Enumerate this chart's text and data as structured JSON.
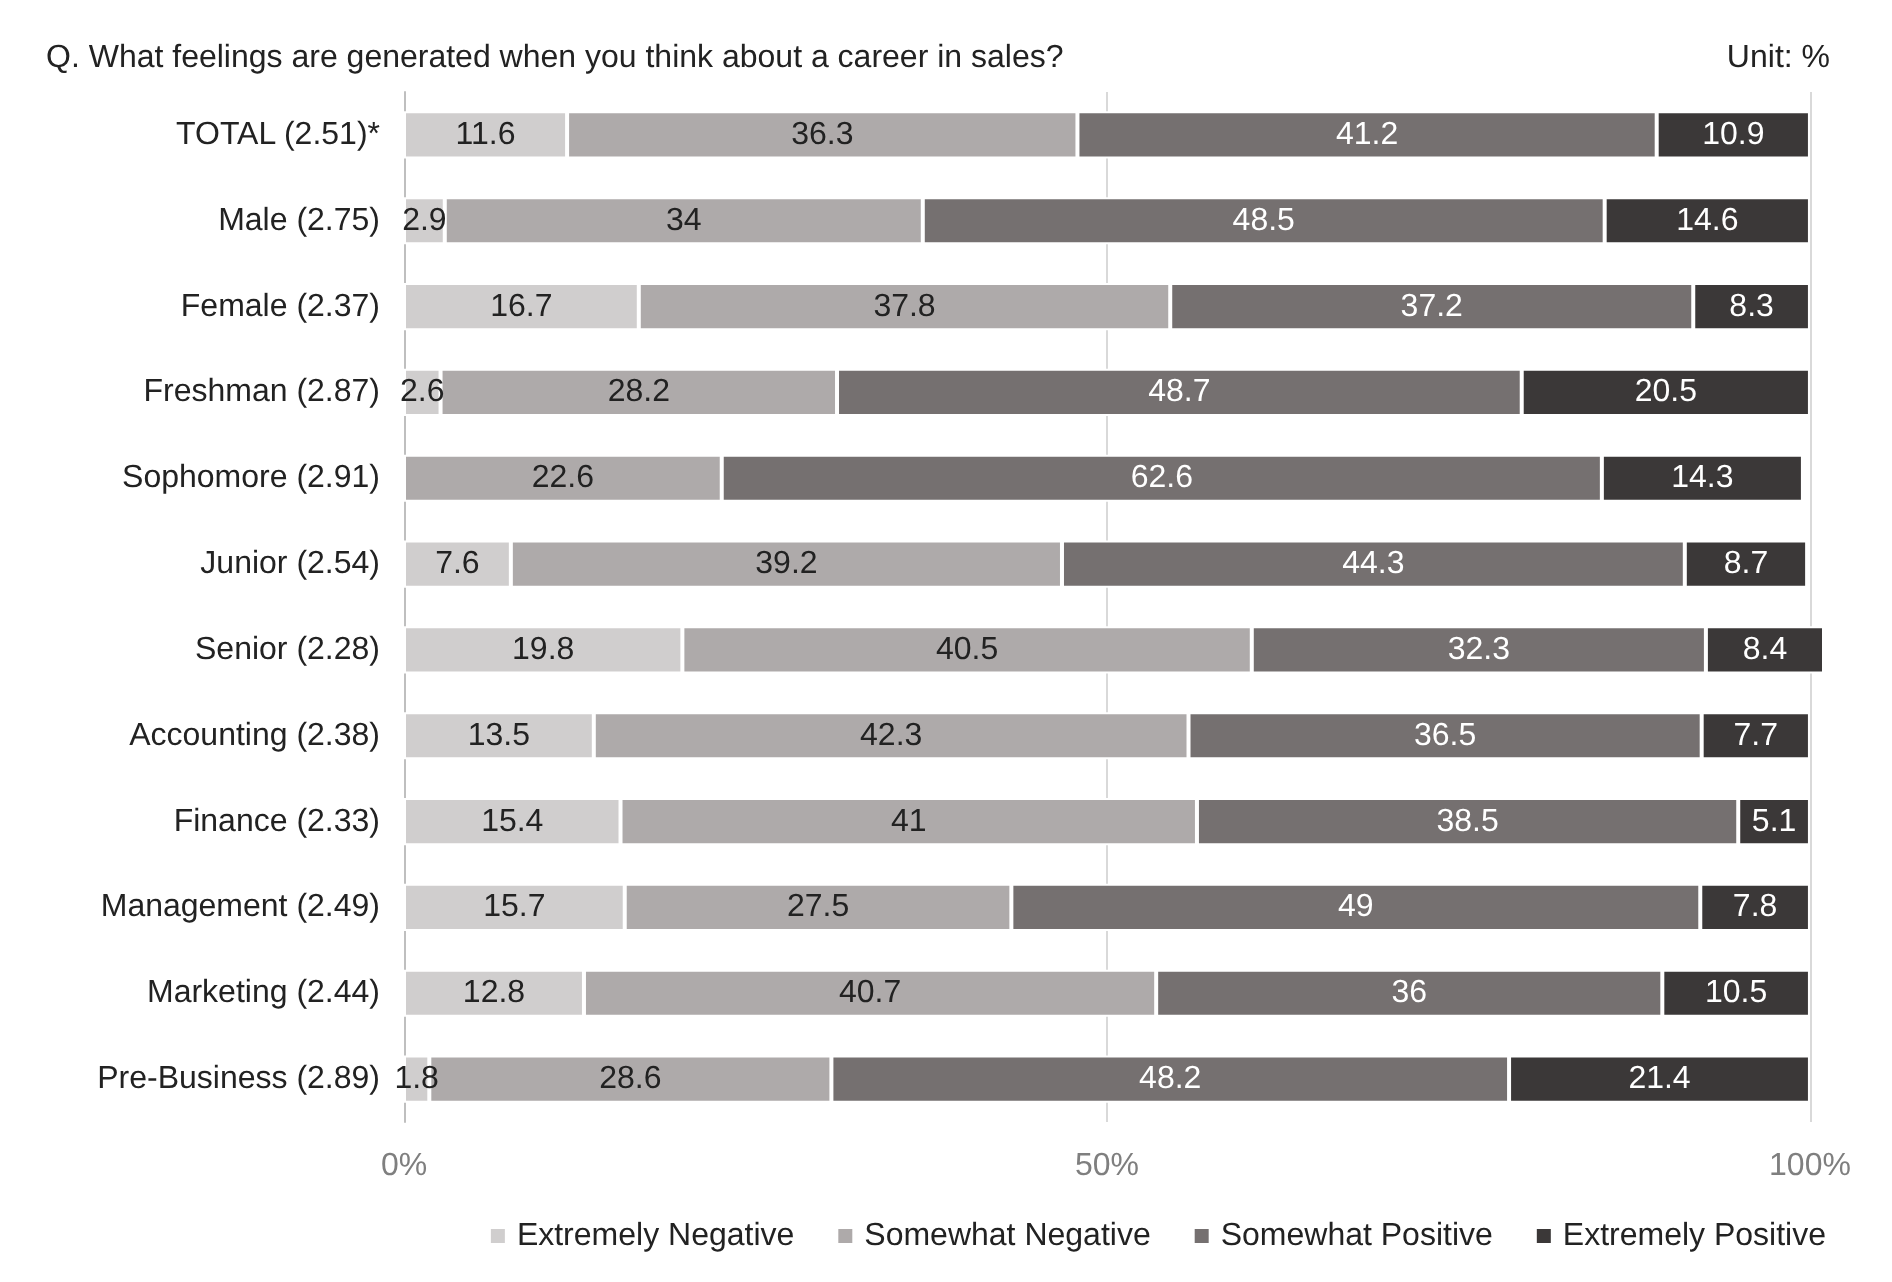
{
  "chart_data": {
    "type": "bar",
    "orientation": "horizontal",
    "stacked": true,
    "title": "Q. What feelings are generated when you think about a career in sales?",
    "annotations": [
      "Unit: %"
    ],
    "categories": [
      "TOTAL (2.51)*",
      "Male (2.75)",
      "Female (2.37)",
      "Freshman (2.87)",
      "Sophomore (2.91)",
      "Junior (2.54)",
      "Senior (2.28)",
      "Accounting (2.38)",
      "Finance (2.33)",
      "Management (2.49)",
      "Marketing (2.44)",
      "Pre-Business (2.89)"
    ],
    "series": [
      {
        "name": "Extremely Negative",
        "color": "#d0cece",
        "values": [
          11.6,
          2.9,
          16.7,
          2.6,
          null,
          7.6,
          19.8,
          13.5,
          15.4,
          15.7,
          12.8,
          1.8
        ]
      },
      {
        "name": "Somewhat Negative",
        "color": "#aeaaaa",
        "values": [
          36.3,
          34,
          37.8,
          28.2,
          22.6,
          39.2,
          40.5,
          42.3,
          41,
          27.5,
          40.7,
          28.6
        ]
      },
      {
        "name": "Somewhat Positive",
        "color": "#757070",
        "values": [
          41.2,
          48.5,
          37.2,
          48.7,
          62.6,
          44.3,
          32.3,
          36.5,
          38.5,
          49,
          36,
          48.2
        ]
      },
      {
        "name": "Extremely Positive",
        "color": "#3b3838",
        "values": [
          10.9,
          14.6,
          8.3,
          20.5,
          14.3,
          8.7,
          8.4,
          7.7,
          5.1,
          7.8,
          10.5,
          21.4
        ]
      }
    ],
    "xlim": [
      0,
      101
    ],
    "xticks": [
      {
        "value": 0,
        "label": "0%"
      },
      {
        "value": 50,
        "label": "50%"
      },
      {
        "value": 100,
        "label": "100%"
      }
    ],
    "grid": "x",
    "legend": "bottom",
    "data_labels": true
  }
}
